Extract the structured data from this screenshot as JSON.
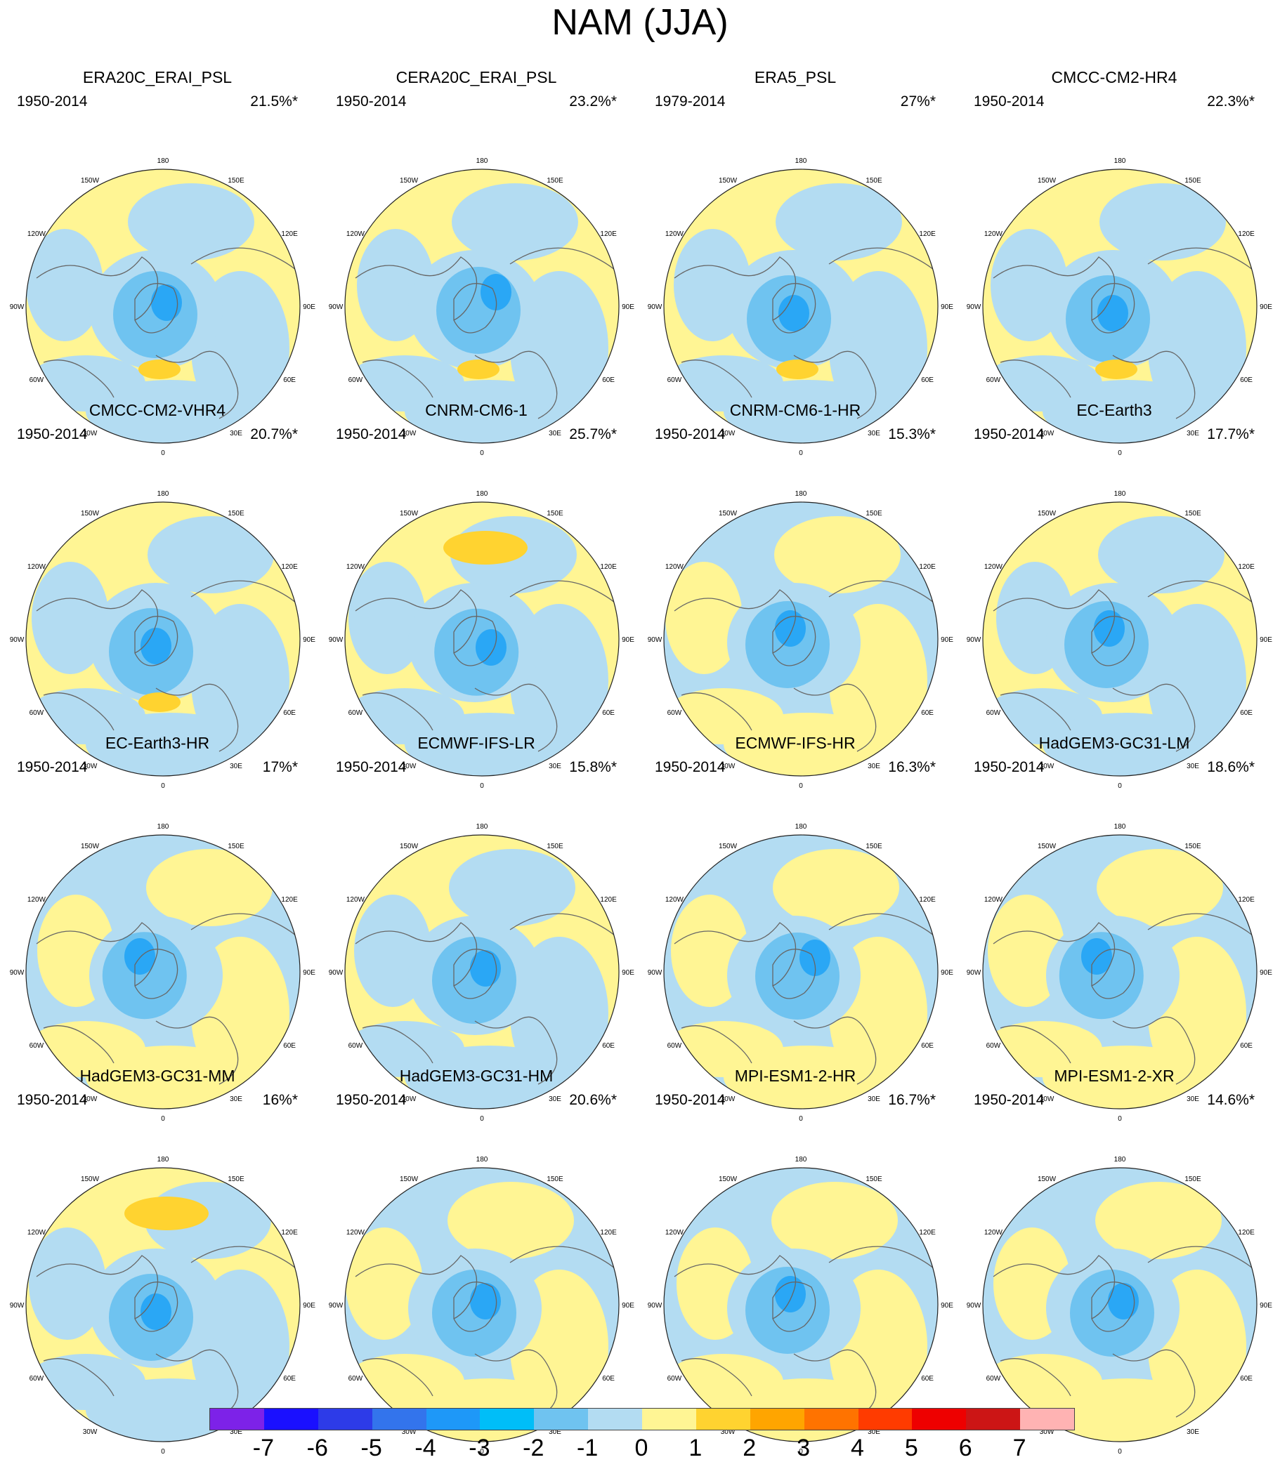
{
  "title": "NAM (JJA)",
  "colors": {
    "yellow": "#fff594",
    "light_blue": "#b3dcf2",
    "mid_blue": "#6fc3f0",
    "deep_blue": "#2aa7f5",
    "orange_yellow": "#ffd330",
    "coast": "#666666"
  },
  "lon_labels": [
    "180",
    "150E",
    "120E",
    "90E",
    "60E",
    "30E",
    "0",
    "30W",
    "60W",
    "90W",
    "120W",
    "150W"
  ],
  "panels": [
    {
      "title": "ERA20C_ERAI_PSL",
      "period": "1950-2014",
      "variance": "21.5%*",
      "pos": 2
    },
    {
      "title": "CERA20C_ERAI_PSL",
      "period": "1950-2014",
      "variance": "23.2%*",
      "pos": 3
    },
    {
      "title": "ERA5_PSL",
      "period": "1979-2014",
      "variance": "27%*",
      "pos": 4
    },
    {
      "title": "CMCC-CM2-HR4",
      "period": "1950-2014",
      "variance": "22.3%*",
      "pos": 4
    },
    {
      "title": "CMCC-CM2-VHR4",
      "period": "1950-2014",
      "variance": "20.7%*",
      "pos": 4
    },
    {
      "title": "CNRM-CM6-1",
      "period": "1950-2014",
      "variance": "25.7%*",
      "pos": 5
    },
    {
      "title": "CNRM-CM6-1-HR",
      "period": "1950-2014",
      "variance": "15.3%*",
      "pos": 1
    },
    {
      "title": "EC-Earth3",
      "period": "1950-2014",
      "variance": "17.7%*",
      "pos": 1
    },
    {
      "title": "EC-Earth3-HR",
      "period": "1950-2014",
      "variance": "17%*",
      "pos": 0
    },
    {
      "title": "ECMWF-IFS-LR",
      "period": "1950-2014",
      "variance": "15.8%*",
      "pos": 2
    },
    {
      "title": "ECMWF-IFS-HR",
      "period": "1950-2014",
      "variance": "16.3%*",
      "pos": 3
    },
    {
      "title": "HadGEM3-GC31-LM",
      "period": "1950-2014",
      "variance": "18.6%*",
      "pos": 0
    },
    {
      "title": "HadGEM3-GC31-MM",
      "period": "1950-2014",
      "variance": "16%*",
      "pos": 4
    },
    {
      "title": "HadGEM3-GC31-HM",
      "period": "1950-2014",
      "variance": "20.6%*",
      "pos": 2
    },
    {
      "title": "MPI-ESM1-2-HR",
      "period": "1950-2014",
      "variance": "16.7%*",
      "pos": 1
    },
    {
      "title": "MPI-ESM1-2-XR",
      "period": "1950-2014",
      "variance": "14.6%*",
      "pos": 2
    }
  ],
  "colorbar": {
    "colors": [
      "#7d22e8",
      "#1a10ff",
      "#2d3be8",
      "#3374ec",
      "#1e98f8",
      "#00bef8",
      "#6fc3f0",
      "#b3dcf2",
      "#fff594",
      "#ffd330",
      "#ffa500",
      "#ff7300",
      "#ff3b00",
      "#ee0000",
      "#cc1515",
      "#ffb3b3"
    ],
    "labels": [
      "-7",
      "-6",
      "-5",
      "-4",
      "-3",
      "-2",
      "-1",
      "0",
      "1",
      "2",
      "3",
      "4",
      "5",
      "6",
      "7"
    ]
  }
}
